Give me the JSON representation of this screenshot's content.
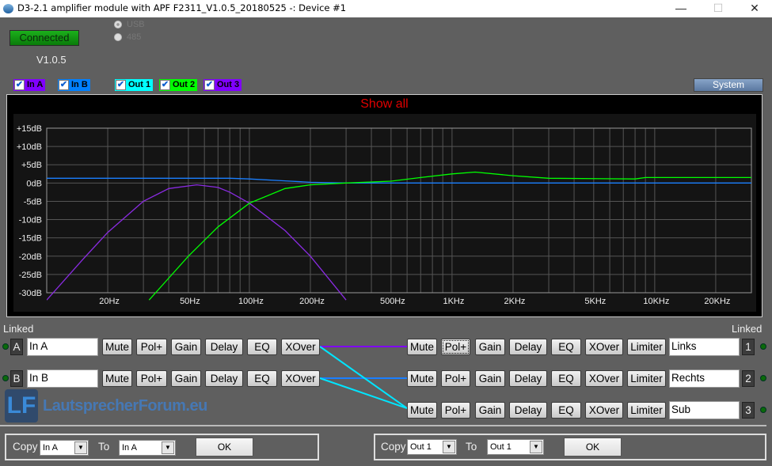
{
  "window": {
    "title": "D3-2.1 amplifier module with APF F2311_V1.0.5_20180525 -:  Device #1",
    "minimize": "—",
    "maximize": "☐",
    "close": "✕"
  },
  "header": {
    "connection": "Connected",
    "version": "V1.0.5",
    "interfaces": [
      {
        "label": "USB",
        "selected": true
      },
      {
        "label": "485",
        "selected": false
      }
    ],
    "system_button": "System"
  },
  "legend": [
    {
      "label": "In A",
      "checked": true,
      "color": "#8000ff"
    },
    {
      "label": "In B",
      "checked": true,
      "color": "#0080ff"
    },
    {
      "label": "Out 1",
      "checked": true,
      "color": "#00ffff"
    },
    {
      "label": "Out 2",
      "checked": true,
      "color": "#00ff00"
    },
    {
      "label": "Out 3",
      "checked": true,
      "color": "#8000ff"
    }
  ],
  "graph": {
    "title": "Show all"
  },
  "chart_data": {
    "type": "line",
    "x_scale": "log",
    "xlim": [
      10,
      30000
    ],
    "ylim": [
      -30,
      15
    ],
    "grid": true,
    "y_ticks": [
      "+15dB",
      "+10dB",
      "+5dB",
      "0dB",
      "-5dB",
      "-10dB",
      "-15dB",
      "-20dB",
      "-25dB",
      "-30dB"
    ],
    "y_tick_values": [
      15,
      10,
      5,
      0,
      -5,
      -10,
      -15,
      -20,
      -25,
      -30
    ],
    "x_ticks": [
      "20Hz",
      "50Hz",
      "100Hz",
      "200Hz",
      "500Hz",
      "1KHz",
      "2KHz",
      "5KHz",
      "10KHz",
      "20KHz"
    ],
    "x_tick_values": [
      20,
      50,
      100,
      200,
      500,
      1000,
      2000,
      5000,
      10000,
      20000
    ],
    "series": [
      {
        "name": "In B",
        "color": "#1a7fff",
        "x": [
          10,
          80,
          100,
          150,
          200,
          300,
          30000
        ],
        "y": [
          1.3,
          1.3,
          1.1,
          0.6,
          0.2,
          0,
          0
        ]
      },
      {
        "name": "Out 3",
        "color": "#8a2be2",
        "x": [
          10,
          15,
          20,
          30,
          40,
          55,
          70,
          80,
          100,
          150,
          200,
          300
        ],
        "y": [
          -32,
          -21,
          -13.5,
          -5,
          -1.5,
          -0.5,
          -1.2,
          -2.5,
          -5.5,
          -13,
          -20,
          -32
        ]
      },
      {
        "name": "Out 2",
        "color": "#00ff00",
        "x": [
          32,
          40,
          50,
          70,
          100,
          150,
          200,
          300,
          500,
          700,
          1000,
          1300,
          2000,
          3000,
          8000,
          9000,
          30000
        ],
        "y": [
          -32,
          -26,
          -20,
          -12,
          -5.5,
          -1.5,
          -0.5,
          0,
          0.5,
          1.5,
          2.5,
          3,
          2,
          1.3,
          1.1,
          1.5,
          1.5
        ]
      }
    ]
  },
  "inputs": {
    "linked_label": "Linked",
    "rows": [
      {
        "channel": "A",
        "name": "In A"
      },
      {
        "channel": "B",
        "name": "In B"
      }
    ]
  },
  "outputs": {
    "linked_label": "Linked",
    "rows": [
      {
        "channel": "1",
        "name": "Links"
      },
      {
        "channel": "2",
        "name": "Rechts"
      },
      {
        "channel": "3",
        "name": "Sub"
      }
    ]
  },
  "buttons": {
    "mute": "Mute",
    "pol": "Pol+",
    "gain": "Gain",
    "delay": "Delay",
    "eq": "EQ",
    "xover": "XOver",
    "limiter": "Limiter"
  },
  "routing_colors": {
    "in_a_to_out1": "#8000ff",
    "in_b_to_out2": "#1a7fff",
    "to_out3": "#00e5ff"
  },
  "copy_inputs": {
    "copy_label": "Copy",
    "from": "In A",
    "to_label": "To",
    "to": "In A",
    "ok": "OK"
  },
  "copy_outputs": {
    "copy_label": "Copy",
    "from": "Out 1",
    "to_label": "To",
    "to": "Out 1",
    "ok": "OK"
  },
  "watermark": {
    "logo": "LF",
    "text": "LautsprecherForum.eu"
  }
}
